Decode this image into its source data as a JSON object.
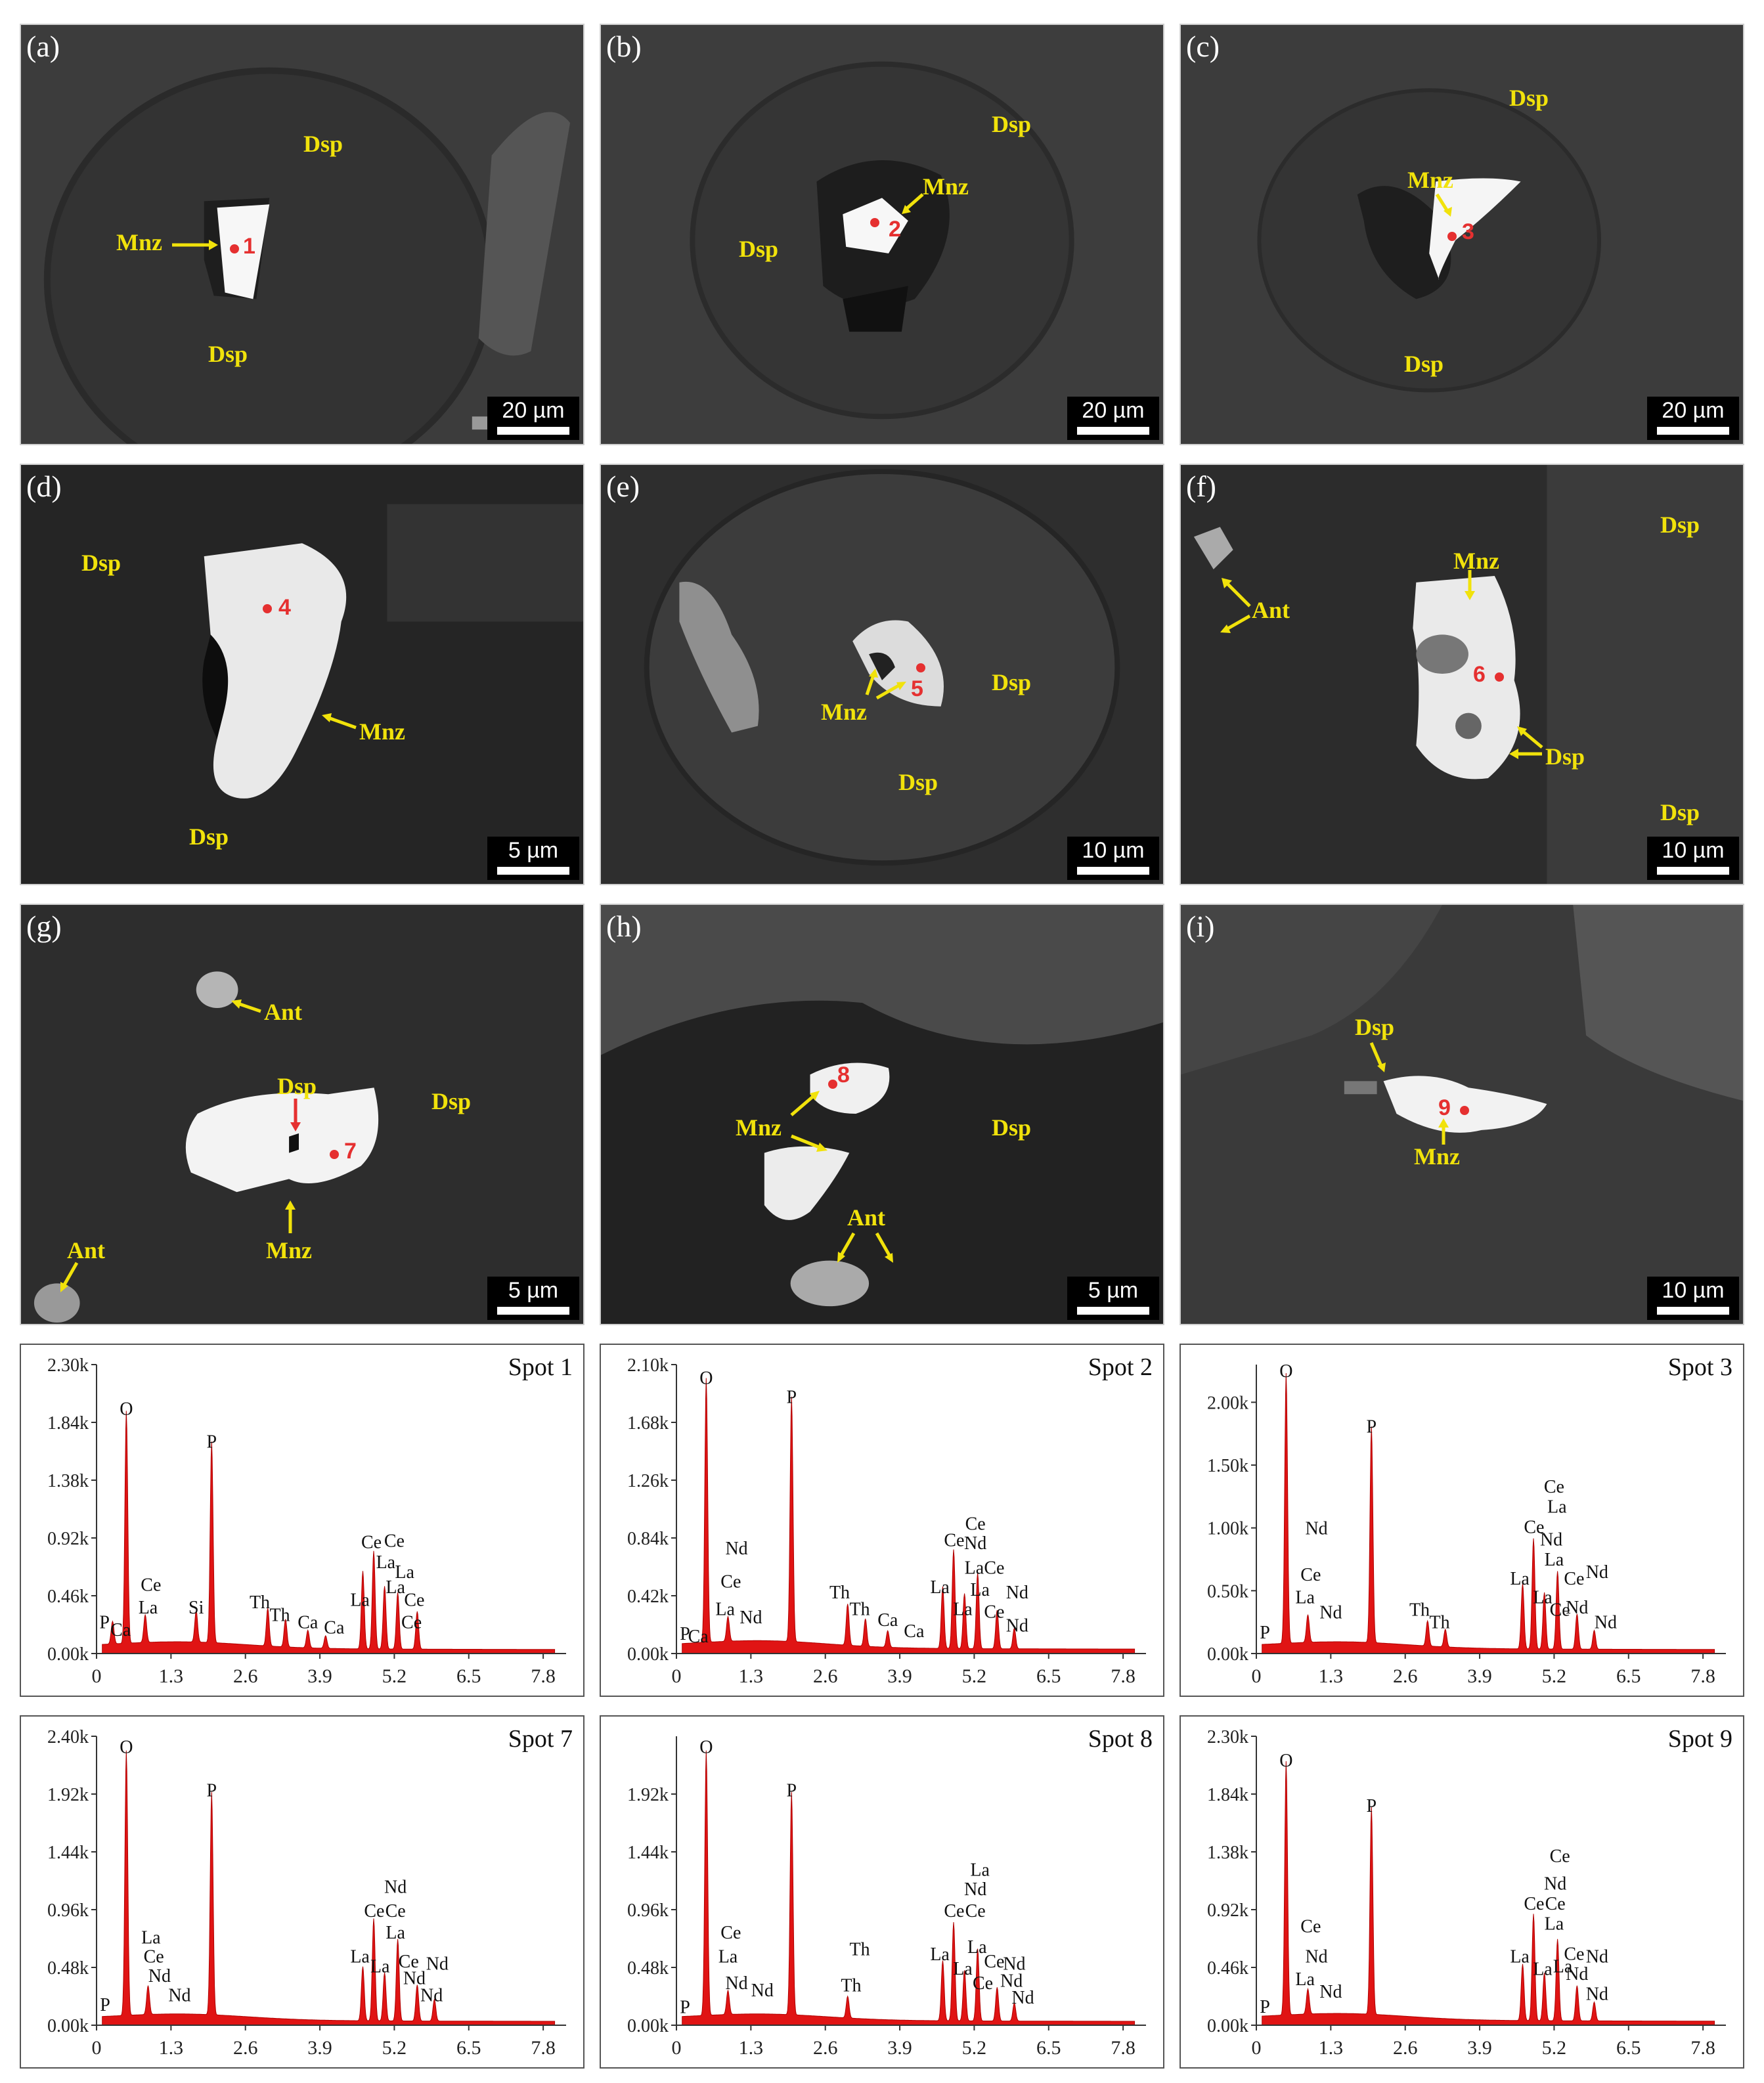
{
  "panels": [
    {
      "id": "a",
      "label": "(a)",
      "scale": "20 µm",
      "labels": [
        {
          "t": "Dsp"
        },
        {
          "t": "Mnz"
        },
        {
          "t": "Dsp"
        }
      ],
      "spot": "1"
    },
    {
      "id": "b",
      "label": "(b)",
      "scale": "20 µm",
      "labels": [
        {
          "t": "Dsp"
        },
        {
          "t": "Mnz"
        },
        {
          "t": "Dsp"
        }
      ],
      "spot": "2"
    },
    {
      "id": "c",
      "label": "(c)",
      "scale": "20 µm",
      "labels": [
        {
          "t": "Dsp"
        },
        {
          "t": "Mnz"
        },
        {
          "t": "Dsp"
        }
      ],
      "spot": "3"
    },
    {
      "id": "d",
      "label": "(d)",
      "scale": "5 µm",
      "labels": [
        {
          "t": "Dsp"
        },
        {
          "t": "Mnz"
        },
        {
          "t": "Dsp"
        }
      ],
      "spot": "4"
    },
    {
      "id": "e",
      "label": "(e)",
      "scale": "10 µm",
      "labels": [
        {
          "t": "Mnz"
        },
        {
          "t": "Dsp"
        },
        {
          "t": "Dsp"
        }
      ],
      "spot": "5"
    },
    {
      "id": "f",
      "label": "(f)",
      "scale": "10 µm",
      "labels": [
        {
          "t": "Mnz"
        },
        {
          "t": "Ant"
        },
        {
          "t": "Dsp"
        },
        {
          "t": "Dsp"
        },
        {
          "t": "Dsp"
        }
      ],
      "spot": "6"
    },
    {
      "id": "g",
      "label": "(g)",
      "scale": "5 µm",
      "labels": [
        {
          "t": "Ant"
        },
        {
          "t": "Dsp"
        },
        {
          "t": "Dsp"
        },
        {
          "t": "Mnz"
        },
        {
          "t": "Ant"
        }
      ],
      "spot": "7"
    },
    {
      "id": "h",
      "label": "(h)",
      "scale": "5 µm",
      "labels": [
        {
          "t": "Mnz"
        },
        {
          "t": "Dsp"
        },
        {
          "t": "Ant"
        }
      ],
      "spot": "8"
    },
    {
      "id": "i",
      "label": "(i)",
      "scale": "10 µm",
      "labels": [
        {
          "t": "Dsp"
        },
        {
          "t": "Mnz"
        }
      ],
      "spot": "9"
    }
  ],
  "chart_data": [
    {
      "type": "line",
      "title": "Spot 1",
      "xlim": [
        0,
        8.2
      ],
      "ylim": [
        0,
        2.3
      ],
      "xticks": [
        "0",
        "1.3",
        "2.6",
        "3.9",
        "5.2",
        "6.5",
        "7.8"
      ],
      "yticks": [
        "0.00k",
        "0.46k",
        "0.92k",
        "1.38k",
        "1.84k",
        "2.30k"
      ],
      "peaks": [
        {
          "x": 0.28,
          "y": 0.18
        },
        {
          "x": 0.52,
          "y": 1.85
        },
        {
          "x": 0.85,
          "y": 0.22
        },
        {
          "x": 1.74,
          "y": 0.25
        },
        {
          "x": 2.01,
          "y": 1.6
        },
        {
          "x": 2.99,
          "y": 0.3
        },
        {
          "x": 3.3,
          "y": 0.22
        },
        {
          "x": 3.69,
          "y": 0.14
        },
        {
          "x": 4.0,
          "y": 0.1
        },
        {
          "x": 4.65,
          "y": 0.62
        },
        {
          "x": 4.84,
          "y": 0.78
        },
        {
          "x": 5.03,
          "y": 0.5
        },
        {
          "x": 5.26,
          "y": 0.45
        },
        {
          "x": 5.6,
          "y": 0.3
        }
      ],
      "annotations": [
        {
          "t": "O",
          "x": 0.52,
          "y": 1.9
        },
        {
          "t": "P",
          "x": 2.01,
          "y": 1.64
        },
        {
          "t": "Ce",
          "x": 0.95,
          "y": 0.5
        },
        {
          "t": "La",
          "x": 0.9,
          "y": 0.32
        },
        {
          "t": "P",
          "x": 0.14,
          "y": 0.2
        },
        {
          "t": "Ca",
          "x": 0.42,
          "y": 0.14
        },
        {
          "t": "Si",
          "x": 1.74,
          "y": 0.32
        },
        {
          "t": "Th",
          "x": 2.85,
          "y": 0.36
        },
        {
          "t": "Th",
          "x": 3.2,
          "y": 0.26
        },
        {
          "t": "Ca",
          "x": 3.69,
          "y": 0.2
        },
        {
          "t": "Ca",
          "x": 4.15,
          "y": 0.16
        },
        {
          "t": "La",
          "x": 4.6,
          "y": 0.38
        },
        {
          "t": "Ce",
          "x": 4.8,
          "y": 0.84
        },
        {
          "t": "Ce",
          "x": 5.2,
          "y": 0.85
        },
        {
          "t": "La",
          "x": 5.05,
          "y": 0.68
        },
        {
          "t": "La",
          "x": 5.38,
          "y": 0.6
        },
        {
          "t": "La",
          "x": 5.22,
          "y": 0.48
        },
        {
          "t": "Ce",
          "x": 5.55,
          "y": 0.38
        },
        {
          "t": "Ce",
          "x": 5.5,
          "y": 0.2
        }
      ]
    },
    {
      "type": "line",
      "title": "Spot 2",
      "xlim": [
        0,
        8.2
      ],
      "ylim": [
        0,
        2.1
      ],
      "xticks": [
        "0",
        "1.3",
        "2.6",
        "3.9",
        "5.2",
        "6.5",
        "7.8"
      ],
      "yticks": [
        "0.00k",
        "0.42k",
        "0.84k",
        "1.26k",
        "1.68k",
        "2.10k"
      ],
      "peaks": [
        {
          "x": 0.52,
          "y": 1.92
        },
        {
          "x": 0.9,
          "y": 0.18
        },
        {
          "x": 2.01,
          "y": 1.78
        },
        {
          "x": 2.99,
          "y": 0.3
        },
        {
          "x": 3.3,
          "y": 0.2
        },
        {
          "x": 3.69,
          "y": 0.12
        },
        {
          "x": 4.65,
          "y": 0.45
        },
        {
          "x": 4.84,
          "y": 0.72
        },
        {
          "x": 5.03,
          "y": 0.4
        },
        {
          "x": 5.26,
          "y": 0.55
        },
        {
          "x": 5.6,
          "y": 0.28
        },
        {
          "x": 5.9,
          "y": 0.15
        }
      ],
      "annotations": [
        {
          "t": "O",
          "x": 0.52,
          "y": 1.96
        },
        {
          "t": "P",
          "x": 2.01,
          "y": 1.82
        },
        {
          "t": "Nd",
          "x": 1.05,
          "y": 0.72
        },
        {
          "t": "Ce",
          "x": 0.95,
          "y": 0.48
        },
        {
          "t": "La",
          "x": 0.85,
          "y": 0.28
        },
        {
          "t": "Nd",
          "x": 1.3,
          "y": 0.22
        },
        {
          "t": "P",
          "x": 0.15,
          "y": 0.1
        },
        {
          "t": "Ca",
          "x": 0.38,
          "y": 0.08
        },
        {
          "t": "Th",
          "x": 2.85,
          "y": 0.4
        },
        {
          "t": "Th",
          "x": 3.2,
          "y": 0.28
        },
        {
          "t": "Ca",
          "x": 3.69,
          "y": 0.2
        },
        {
          "t": "Ca",
          "x": 4.15,
          "y": 0.12
        },
        {
          "t": "La",
          "x": 4.6,
          "y": 0.44
        },
        {
          "t": "Ce",
          "x": 4.85,
          "y": 0.78
        },
        {
          "t": "Ce",
          "x": 5.22,
          "y": 0.9
        },
        {
          "t": "Nd",
          "x": 5.22,
          "y": 0.76
        },
        {
          "t": "La",
          "x": 5.2,
          "y": 0.58
        },
        {
          "t": "Ce",
          "x": 5.55,
          "y": 0.58
        },
        {
          "t": "La",
          "x": 5.3,
          "y": 0.42
        },
        {
          "t": "Nd",
          "x": 5.95,
          "y": 0.4
        },
        {
          "t": "Ce",
          "x": 5.55,
          "y": 0.26
        },
        {
          "t": "Nd",
          "x": 5.95,
          "y": 0.16
        },
        {
          "t": "La",
          "x": 5.0,
          "y": 0.28
        }
      ]
    },
    {
      "type": "line",
      "title": "Spot 3",
      "xlim": [
        0,
        8.2
      ],
      "ylim": [
        0,
        2.3
      ],
      "xticks": [
        "0",
        "1.3",
        "2.6",
        "3.9",
        "5.2",
        "6.5",
        "7.8"
      ],
      "yticks": [
        "0.00k",
        "0.50k",
        "1.00k",
        "1.50k",
        "2.00k"
      ],
      "peaks": [
        {
          "x": 0.52,
          "y": 2.15
        },
        {
          "x": 0.9,
          "y": 0.22
        },
        {
          "x": 2.01,
          "y": 1.72
        },
        {
          "x": 2.99,
          "y": 0.2
        },
        {
          "x": 3.3,
          "y": 0.14
        },
        {
          "x": 4.65,
          "y": 0.52
        },
        {
          "x": 4.84,
          "y": 0.88
        },
        {
          "x": 5.03,
          "y": 0.45
        },
        {
          "x": 5.26,
          "y": 0.62
        },
        {
          "x": 5.6,
          "y": 0.28
        },
        {
          "x": 5.9,
          "y": 0.15
        }
      ],
      "annotations": [
        {
          "t": "O",
          "x": 0.52,
          "y": 2.2
        },
        {
          "t": "P",
          "x": 2.01,
          "y": 1.76
        },
        {
          "t": "Nd",
          "x": 1.05,
          "y": 0.95
        },
        {
          "t": "Ce",
          "x": 0.95,
          "y": 0.58
        },
        {
          "t": "La",
          "x": 0.85,
          "y": 0.4
        },
        {
          "t": "Nd",
          "x": 1.3,
          "y": 0.28
        },
        {
          "t": "P",
          "x": 0.15,
          "y": 0.12
        },
        {
          "t": "Th",
          "x": 2.85,
          "y": 0.3
        },
        {
          "t": "Th",
          "x": 3.2,
          "y": 0.2
        },
        {
          "t": "Ce",
          "x": 5.2,
          "y": 1.28
        },
        {
          "t": "La",
          "x": 5.25,
          "y": 1.12
        },
        {
          "t": "Ce",
          "x": 4.85,
          "y": 0.96
        },
        {
          "t": "Nd",
          "x": 5.15,
          "y": 0.86
        },
        {
          "t": "La",
          "x": 5.2,
          "y": 0.7
        },
        {
          "t": "La",
          "x": 4.6,
          "y": 0.55
        },
        {
          "t": "Ce",
          "x": 5.55,
          "y": 0.55
        },
        {
          "t": "Nd",
          "x": 5.95,
          "y": 0.6
        },
        {
          "t": "La",
          "x": 5.0,
          "y": 0.4
        },
        {
          "t": "Ce",
          "x": 5.3,
          "y": 0.3
        },
        {
          "t": "Nd",
          "x": 5.6,
          "y": 0.32
        },
        {
          "t": "Nd",
          "x": 6.1,
          "y": 0.2
        }
      ]
    },
    {
      "type": "line",
      "title": "Spot 7",
      "xlim": [
        0,
        8.2
      ],
      "ylim": [
        0,
        2.4
      ],
      "xticks": [
        "0",
        "1.3",
        "2.6",
        "3.9",
        "5.2",
        "6.5",
        "7.8"
      ],
      "yticks": [
        "0.00k",
        "0.48k",
        "0.96k",
        "1.44k",
        "1.92k",
        "2.40k"
      ],
      "peaks": [
        {
          "x": 0.52,
          "y": 2.2
        },
        {
          "x": 0.9,
          "y": 0.24
        },
        {
          "x": 2.01,
          "y": 1.85
        },
        {
          "x": 4.65,
          "y": 0.45
        },
        {
          "x": 4.84,
          "y": 0.85
        },
        {
          "x": 5.03,
          "y": 0.4
        },
        {
          "x": 5.26,
          "y": 0.68
        },
        {
          "x": 5.6,
          "y": 0.3
        },
        {
          "x": 5.9,
          "y": 0.18
        }
      ],
      "annotations": [
        {
          "t": "O",
          "x": 0.52,
          "y": 2.26
        },
        {
          "t": "P",
          "x": 2.01,
          "y": 1.9
        },
        {
          "t": "La",
          "x": 0.95,
          "y": 0.68
        },
        {
          "t": "Ce",
          "x": 1.0,
          "y": 0.52
        },
        {
          "t": "Nd",
          "x": 1.1,
          "y": 0.36
        },
        {
          "t": "Nd",
          "x": 1.45,
          "y": 0.2
        },
        {
          "t": "P",
          "x": 0.15,
          "y": 0.12
        },
        {
          "t": "Nd",
          "x": 5.22,
          "y": 1.1
        },
        {
          "t": "Ce",
          "x": 4.85,
          "y": 0.9
        },
        {
          "t": "Ce",
          "x": 5.22,
          "y": 0.9
        },
        {
          "t": "La",
          "x": 5.22,
          "y": 0.72
        },
        {
          "t": "La",
          "x": 4.6,
          "y": 0.52
        },
        {
          "t": "La",
          "x": 4.95,
          "y": 0.44
        },
        {
          "t": "Ce",
          "x": 5.45,
          "y": 0.48
        },
        {
          "t": "Nd",
          "x": 5.55,
          "y": 0.34
        },
        {
          "t": "Nd",
          "x": 5.95,
          "y": 0.46
        },
        {
          "t": "Nd",
          "x": 5.85,
          "y": 0.2
        }
      ]
    },
    {
      "type": "line",
      "title": "Spot 8",
      "xlim": [
        0,
        8.2
      ],
      "ylim": [
        0,
        2.4
      ],
      "xticks": [
        "0",
        "1.3",
        "2.6",
        "3.9",
        "5.2",
        "6.5",
        "7.8"
      ],
      "yticks": [
        "0.00k",
        "0.48k",
        "0.96k",
        "1.44k",
        "1.92k"
      ],
      "peaks": [
        {
          "x": 0.52,
          "y": 2.2
        },
        {
          "x": 0.9,
          "y": 0.2
        },
        {
          "x": 2.01,
          "y": 1.85
        },
        {
          "x": 2.99,
          "y": 0.18
        },
        {
          "x": 4.65,
          "y": 0.5
        },
        {
          "x": 4.84,
          "y": 0.82
        },
        {
          "x": 5.03,
          "y": 0.42
        },
        {
          "x": 5.26,
          "y": 0.6
        },
        {
          "x": 5.6,
          "y": 0.28
        },
        {
          "x": 5.9,
          "y": 0.15
        }
      ],
      "annotations": [
        {
          "t": "O",
          "x": 0.52,
          "y": 2.26
        },
        {
          "t": "P",
          "x": 2.01,
          "y": 1.9
        },
        {
          "t": "Ce",
          "x": 0.95,
          "y": 0.72
        },
        {
          "t": "La",
          "x": 0.9,
          "y": 0.52
        },
        {
          "t": "Nd",
          "x": 1.05,
          "y": 0.3
        },
        {
          "t": "Nd",
          "x": 1.5,
          "y": 0.24
        },
        {
          "t": "P",
          "x": 0.15,
          "y": 0.1
        },
        {
          "t": "Th",
          "x": 3.2,
          "y": 0.58
        },
        {
          "t": "Th",
          "x": 3.05,
          "y": 0.28
        },
        {
          "t": "La",
          "x": 5.3,
          "y": 1.24
        },
        {
          "t": "Nd",
          "x": 5.22,
          "y": 1.08
        },
        {
          "t": "Ce",
          "x": 4.85,
          "y": 0.9
        },
        {
          "t": "Ce",
          "x": 5.22,
          "y": 0.9
        },
        {
          "t": "La",
          "x": 4.6,
          "y": 0.54
        },
        {
          "t": "La",
          "x": 5.25,
          "y": 0.6
        },
        {
          "t": "La",
          "x": 5.0,
          "y": 0.42
        },
        {
          "t": "Ce",
          "x": 5.55,
          "y": 0.48
        },
        {
          "t": "Ce",
          "x": 5.35,
          "y": 0.3
        },
        {
          "t": "Nd",
          "x": 5.9,
          "y": 0.46
        },
        {
          "t": "Nd",
          "x": 5.85,
          "y": 0.32
        },
        {
          "t": "Nd",
          "x": 6.05,
          "y": 0.18
        }
      ]
    },
    {
      "type": "line",
      "title": "Spot 9",
      "xlim": [
        0,
        8.2
      ],
      "ylim": [
        0,
        2.3
      ],
      "xticks": [
        "0",
        "1.3",
        "2.6",
        "3.9",
        "5.2",
        "6.5",
        "7.8"
      ],
      "yticks": [
        "0.00k",
        "0.46k",
        "0.92k",
        "1.38k",
        "1.84k",
        "2.30k"
      ],
      "peaks": [
        {
          "x": 0.52,
          "y": 2.02
        },
        {
          "x": 0.9,
          "y": 0.2
        },
        {
          "x": 2.01,
          "y": 1.65
        },
        {
          "x": 4.65,
          "y": 0.45
        },
        {
          "x": 4.84,
          "y": 0.85
        },
        {
          "x": 5.03,
          "y": 0.38
        },
        {
          "x": 5.26,
          "y": 0.65
        },
        {
          "x": 5.6,
          "y": 0.28
        },
        {
          "x": 5.9,
          "y": 0.15
        }
      ],
      "annotations": [
        {
          "t": "O",
          "x": 0.52,
          "y": 2.06
        },
        {
          "t": "P",
          "x": 2.01,
          "y": 1.7
        },
        {
          "t": "Ce",
          "x": 0.95,
          "y": 0.74
        },
        {
          "t": "Nd",
          "x": 1.05,
          "y": 0.5
        },
        {
          "t": "La",
          "x": 0.85,
          "y": 0.32
        },
        {
          "t": "Nd",
          "x": 1.3,
          "y": 0.22
        },
        {
          "t": "P",
          "x": 0.15,
          "y": 0.1
        },
        {
          "t": "Ce",
          "x": 5.3,
          "y": 1.3
        },
        {
          "t": "Nd",
          "x": 5.22,
          "y": 1.08
        },
        {
          "t": "Ce",
          "x": 4.85,
          "y": 0.92
        },
        {
          "t": "Ce",
          "x": 5.22,
          "y": 0.92
        },
        {
          "t": "La",
          "x": 5.2,
          "y": 0.76
        },
        {
          "t": "La",
          "x": 4.6,
          "y": 0.5
        },
        {
          "t": "La",
          "x": 5.0,
          "y": 0.4
        },
        {
          "t": "La",
          "x": 5.35,
          "y": 0.42
        },
        {
          "t": "Ce",
          "x": 5.55,
          "y": 0.52
        },
        {
          "t": "Nd",
          "x": 5.95,
          "y": 0.5
        },
        {
          "t": "Nd",
          "x": 5.6,
          "y": 0.36
        },
        {
          "t": "Nd",
          "x": 5.95,
          "y": 0.2
        }
      ]
    }
  ]
}
